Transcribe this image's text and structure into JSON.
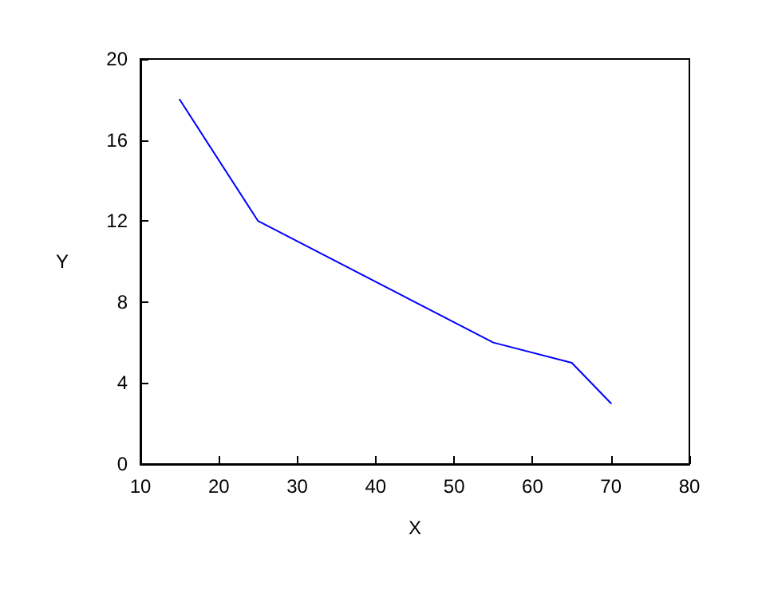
{
  "chart_data": {
    "type": "line",
    "xlabel": "X",
    "ylabel": "Y",
    "x": [
      15,
      25,
      55,
      65,
      70
    ],
    "series": [
      {
        "color": "#0000ff",
        "values": [
          18,
          12,
          6,
          5,
          3
        ]
      }
    ],
    "xlim": [
      10,
      80
    ],
    "xticks": [
      10,
      20,
      30,
      40,
      50,
      60,
      70,
      80
    ],
    "ylim": [
      0,
      20
    ],
    "yticks": [
      0,
      4,
      8,
      12,
      16,
      20
    ],
    "grid": false,
    "marker": "none",
    "line_style": "solid"
  }
}
